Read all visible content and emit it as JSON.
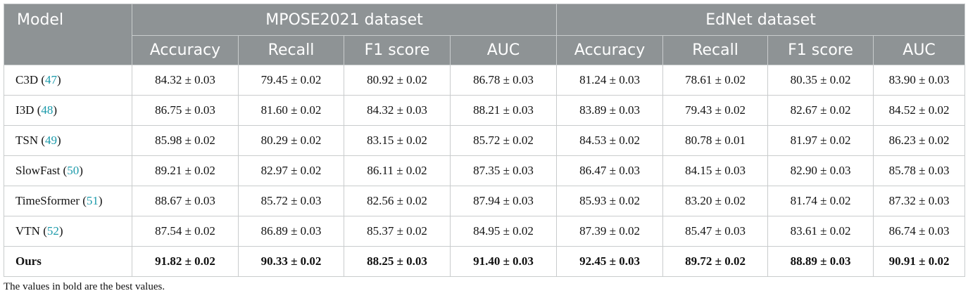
{
  "table": {
    "model_header": "Model",
    "groups": [
      {
        "name": "MPOSE2021 dataset",
        "metrics": [
          "Accuracy",
          "Recall",
          "F1 score",
          "AUC"
        ]
      },
      {
        "name": "EdNet dataset",
        "metrics": [
          "Accuracy",
          "Recall",
          "F1 score",
          "AUC"
        ]
      }
    ],
    "rows": [
      {
        "label": [
          "C3D (",
          "47",
          ")"
        ],
        "cells": [
          "84.32 ± 0.03",
          "79.45 ± 0.02",
          "80.92 ± 0.02",
          "86.78 ± 0.03",
          "81.24 ± 0.03",
          "78.61 ± 0.02",
          "80.35 ± 0.02",
          "83.90 ± 0.03"
        ]
      },
      {
        "label": [
          "I3D (",
          "48",
          ")"
        ],
        "cells": [
          "86.75 ± 0.03",
          "81.60 ± 0.02",
          "84.32 ± 0.03",
          "88.21 ± 0.03",
          "83.89 ± 0.03",
          "79.43 ± 0.02",
          "82.67 ± 0.02",
          "84.52 ± 0.02"
        ]
      },
      {
        "label": [
          "TSN (",
          "49",
          ")"
        ],
        "cells": [
          "85.98 ± 0.02",
          "80.29 ± 0.02",
          "83.15 ± 0.02",
          "85.72 ± 0.02",
          "84.53 ± 0.02",
          "80.78 ± 0.01",
          "81.97 ± 0.02",
          "86.23 ± 0.02"
        ]
      },
      {
        "label": [
          "SlowFast (",
          "50",
          ")"
        ],
        "cells": [
          "89.21 ± 0.02",
          "82.97 ± 0.02",
          "86.11 ± 0.02",
          "87.35 ± 0.03",
          "86.47 ± 0.03",
          "84.15 ± 0.03",
          "82.90 ± 0.03",
          "85.78 ± 0.03"
        ]
      },
      {
        "label": [
          "TimeSformer (",
          "51",
          ")"
        ],
        "cells": [
          "88.67 ± 0.03",
          "85.72 ± 0.03",
          "82.56 ± 0.02",
          "87.94 ± 0.03",
          "85.93 ± 0.02",
          "83.20 ± 0.02",
          "81.74 ± 0.02",
          "87.32 ± 0.03"
        ]
      },
      {
        "label": [
          "VTN (",
          "52",
          ")"
        ],
        "cells": [
          "87.54 ± 0.02",
          "86.89 ± 0.03",
          "85.37 ± 0.02",
          "84.95 ± 0.02",
          "87.39 ± 0.02",
          "85.47 ± 0.03",
          "83.61 ± 0.02",
          "86.74 ± 0.03"
        ]
      },
      {
        "label": [
          "Ours"
        ],
        "bold": true,
        "cells": [
          "91.82 ± 0.02",
          "90.33 ± 0.02",
          "88.25 ± 0.03",
          "91.40 ± 0.03",
          "92.45 ± 0.03",
          "89.72 ± 0.02",
          "88.89 ± 0.03",
          "90.91 ± 0.02"
        ]
      }
    ],
    "note": "The values in bold are the best values."
  }
}
